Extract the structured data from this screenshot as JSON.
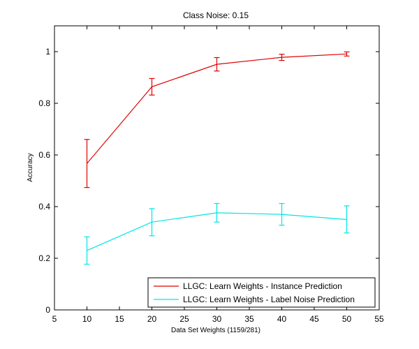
{
  "chart_data": {
    "type": "line",
    "title": "Class Noise: 0.15",
    "xlabel": "Data Set Weights (1159/281)",
    "ylabel": "Accuracy",
    "xlim": [
      5,
      55
    ],
    "ylim": [
      0,
      1.1
    ],
    "xticks": [
      "5",
      "10",
      "15",
      "20",
      "25",
      "30",
      "35",
      "40",
      "45",
      "50",
      "55"
    ],
    "yticks": [
      "0",
      "0.2",
      "0.4",
      "0.6",
      "0.8",
      "1"
    ],
    "grid": false,
    "legend_position": "bottom-right",
    "x": [
      10,
      20,
      30,
      40,
      50
    ],
    "series": [
      {
        "name": "LLGC: Learn Weights - Instance Prediction",
        "color": "#e00000",
        "values": [
          0.567,
          0.864,
          0.951,
          0.978,
          0.991
        ],
        "err_low": [
          0.474,
          0.832,
          0.925,
          0.966,
          0.983
        ],
        "err_high": [
          0.66,
          0.896,
          0.977,
          0.99,
          0.999
        ]
      },
      {
        "name": "LLGC: Learn Weights - Label Noise Prediction",
        "color": "#00e5e5",
        "values": [
          0.23,
          0.34,
          0.376,
          0.37,
          0.35
        ],
        "err_low": [
          0.177,
          0.287,
          0.34,
          0.328,
          0.298
        ],
        "err_high": [
          0.283,
          0.392,
          0.412,
          0.412,
          0.403
        ]
      }
    ]
  }
}
